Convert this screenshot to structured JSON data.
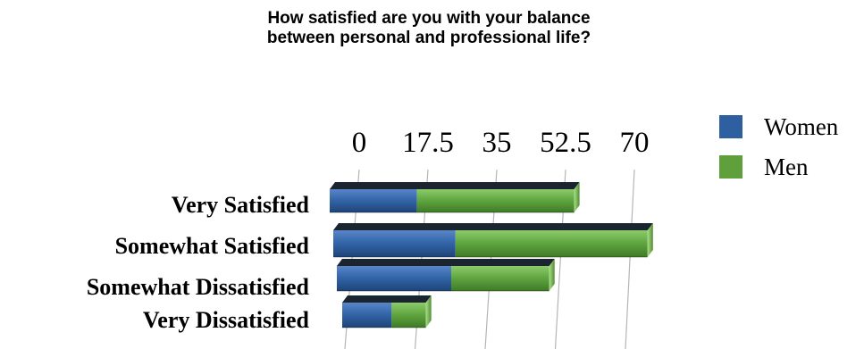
{
  "chart_data": {
    "type": "bar",
    "orientation": "horizontal",
    "stacked": true,
    "style": "3d",
    "title_lines": [
      "How satisfied are you with your balance",
      "between personal and professional life?"
    ],
    "xlabel": "",
    "ylabel": "",
    "ticks": [
      "0",
      "17.5",
      "35",
      "52.5",
      "70"
    ],
    "tick_values": [
      0,
      17.5,
      35,
      52.5,
      70
    ],
    "xlim": [
      0,
      70
    ],
    "categories": [
      "Very Satisfied",
      "Somewhat Satisfied",
      "Somewhat Dissatisfied",
      "Very Dissatisfied"
    ],
    "series": [
      {
        "name": "Women",
        "values": [
          20,
          28,
          28,
          13
        ],
        "color": "#2E5FA0"
      },
      {
        "name": "Men",
        "values": [
          36,
          44,
          24,
          9
        ],
        "color": "#5FA03D"
      }
    ],
    "legend_position": "top-right",
    "grid": true
  }
}
